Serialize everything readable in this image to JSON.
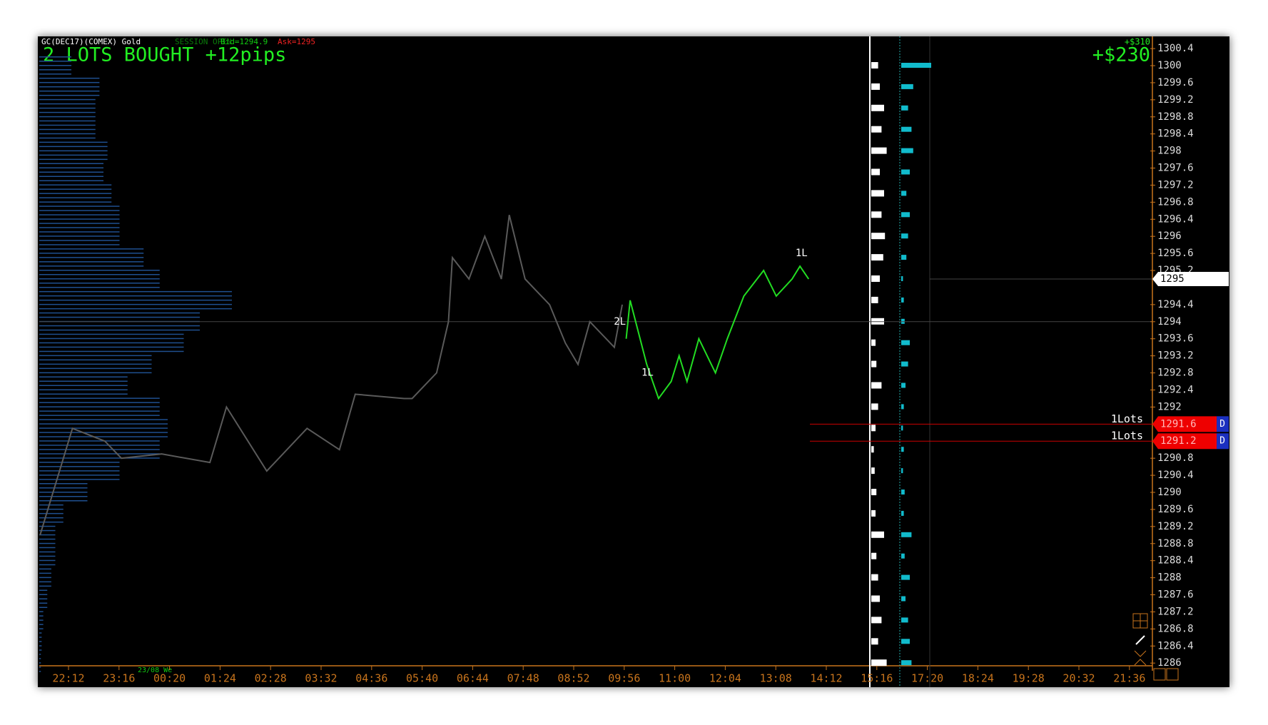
{
  "header": {
    "instrument": "GC(DEC17)(COMEX) Gold",
    "session": "SESSION OPEN",
    "bid": "Bid=1294.9",
    "ask": "Ask=1295",
    "status": "2 LOTS BOUGHT +12pips",
    "pnl_small": "+$310",
    "pnl": "+$230"
  },
  "price_axis": {
    "ticks": [
      1300.4,
      1300,
      1299.6,
      1299.2,
      1298.8,
      1298.4,
      1298,
      1297.6,
      1297.2,
      1296.8,
      1296.4,
      1296,
      1295.6,
      1295.2,
      1294.4,
      1294,
      1293.6,
      1293.2,
      1292.8,
      1292.4,
      1292,
      1290.8,
      1290.4,
      1290,
      1289.6,
      1289.2,
      1288.8,
      1288.4,
      1288,
      1287.6,
      1287.2,
      1286.8,
      1286.4,
      1286
    ],
    "current": 1295,
    "crosshair": 1294
  },
  "time_axis": {
    "labels": [
      "22:12",
      "23:16",
      "00:20",
      "01:24",
      "02:28",
      "03:32",
      "04:36",
      "05:40",
      "06:44",
      "07:48",
      "08:52",
      "09:56",
      "11:00",
      "12:04",
      "13:08",
      "14:12",
      "15:16",
      "17:20",
      "18:24",
      "19:28",
      "20:32",
      "21:36"
    ],
    "date": "23/08 We"
  },
  "orders": [
    {
      "label": "1Lots",
      "price": 1291.6,
      "flag": "D"
    },
    {
      "label": "1Lots",
      "price": 1291.2,
      "flag": "D"
    }
  ],
  "trade_markers": [
    {
      "label": "2L",
      "time": "09:50",
      "price": 1294
    },
    {
      "label": "1L",
      "time": "10:25",
      "price": 1292.8
    },
    {
      "label": "1L",
      "time": "13:40",
      "price": 1295.6
    }
  ],
  "history": {
    "x": [
      "21:36",
      "22:17",
      "22:58",
      "23:19",
      "00:10",
      "01:11",
      "01:32",
      "02:23",
      "03:14",
      "03:55",
      "04:15",
      "05:17",
      "05:27",
      "05:58",
      "06:13",
      "06:18",
      "06:39",
      "06:59",
      "07:20",
      "07:30",
      "07:50",
      "08:21",
      "08:41",
      "08:57",
      "09:12",
      "09:43",
      "09:53"
    ],
    "values": [
      1289,
      1291.5,
      1291.2,
      1290.8,
      1290.9,
      1290.7,
      1292,
      1290.5,
      1291.5,
      1291,
      1292.3,
      1292.2,
      1292.2,
      1292.8,
      1294,
      1295.5,
      1295,
      1296,
      1295,
      1296.5,
      1295,
      1294.4,
      1293.5,
      1293,
      1294,
      1293.4,
      1294.4
    ]
  },
  "session": {
    "x": [
      "09:58",
      "10:03",
      "10:24",
      "10:39",
      "10:55",
      "11:05",
      "11:15",
      "11:30",
      "11:51",
      "12:06",
      "12:27",
      "12:52",
      "13:08",
      "13:28",
      "13:38",
      "13:49"
    ],
    "values": [
      1293.6,
      1294.5,
      1293,
      1292.2,
      1292.6,
      1293.2,
      1292.6,
      1293.6,
      1292.8,
      1293.6,
      1294.6,
      1295.2,
      1294.6,
      1295,
      1295.3,
      1295
    ]
  },
  "volume_profiles": {
    "levels": [
      1286,
      1286.5,
      1287,
      1287.5,
      1288,
      1288.5,
      1289,
      1289.5,
      1290,
      1290.5,
      1291,
      1291.5,
      1292,
      1292.5,
      1293,
      1293.5,
      1294,
      1294.5,
      1295,
      1295.5,
      1296,
      1296.5,
      1297,
      1297.5,
      1298,
      1298.5,
      1299,
      1299.5,
      1300
    ],
    "left": [
      2,
      3,
      5,
      10,
      15,
      20,
      20,
      30,
      60,
      100,
      150,
      160,
      150,
      110,
      140,
      180,
      200,
      240,
      150,
      130,
      100,
      100,
      90,
      80,
      85,
      70,
      70,
      75,
      40
    ],
    "session": [
      18,
      8,
      12,
      10,
      8,
      6,
      15,
      5,
      6,
      4,
      3,
      5,
      8,
      12,
      6,
      5,
      15,
      8,
      10,
      14,
      16,
      12,
      15,
      10,
      18,
      12,
      15,
      10,
      8
    ],
    "delta": [
      12,
      10,
      8,
      5,
      10,
      4,
      12,
      3,
      4,
      2,
      3,
      2,
      3,
      5,
      8,
      10,
      4,
      3,
      2,
      6,
      8,
      10,
      6,
      10,
      14,
      12,
      8,
      14,
      35
    ]
  }
}
